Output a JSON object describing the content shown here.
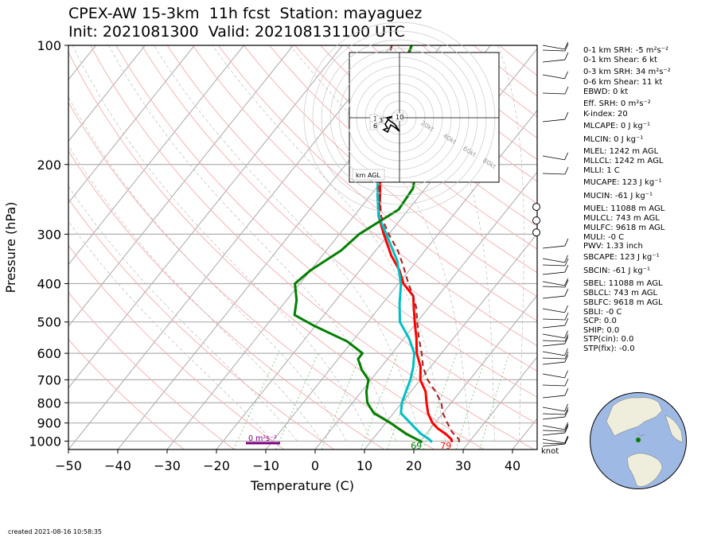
{
  "title_line1": "CPEX-AW 15-3km  11h fcst  Station: mayaguez",
  "title_line2": "Init: 2021081300  Valid: 202108131100 UTC",
  "footer": "created 2021-08-16 10:58:35",
  "wind_unit_label": "knot",
  "indices": [
    "0-1 km SRH: -5 m²s⁻²",
    "0-1 km Shear: 6 kt",
    "0-3 km SRH: 34 m²s⁻²",
    "0-6 km Shear: 11 kt",
    "EBWD: 0 kt",
    "Eff. SRH: 0 m²s⁻²",
    "K-index: 20",
    "MLCAPE: 0 J kg⁻¹",
    "MLCIN: 0 J kg⁻¹",
    "MLEL: 1242 m AGL",
    "MLLCL: 1242 m AGL",
    "MLLI: 1 C",
    "MUCAPE: 123 J kg⁻¹",
    "MUCIN: -61 J kg⁻¹",
    "MUEL: 11088 m AGL",
    "MULCL: 743 m AGL",
    "MULFC: 9618 m AGL",
    "MULI: -0 C",
    "PWV: 1.33 inch",
    "SBCAPE: 123 J kg⁻¹",
    "SBCIN: -61 J kg⁻¹",
    "SBEL: 11088 m AGL",
    "SBLCL: 743 m AGL",
    "SBLFC: 9618 m AGL",
    "SBLI: -0 C",
    "SCP: 0.0",
    "SHIP: 0.0",
    "STP(cin): 0.0",
    "STP(fix): -0.0"
  ],
  "chart_data": {
    "type": "line",
    "subtype": "skew-T log-p",
    "xlabel": "Temperature (C)",
    "ylabel": "Pressure (hPa)",
    "xlim": [
      -50,
      45
    ],
    "ylim": [
      1050,
      100
    ],
    "x_ticks": [
      -50,
      -40,
      -30,
      -20,
      -10,
      0,
      10,
      20,
      30,
      40
    ],
    "y_ticks": [
      100,
      200,
      300,
      400,
      500,
      600,
      700,
      800,
      900,
      1000
    ],
    "y_scale": "log",
    "grid": true,
    "series": [
      {
        "color": "#ff0000",
        "style": "solid",
        "points": [
          [
            1006,
            26.5
          ],
          [
            990,
            26
          ],
          [
            960,
            24
          ],
          [
            930,
            21.5
          ],
          [
            900,
            19.5
          ],
          [
            870,
            18
          ],
          [
            850,
            17
          ],
          [
            800,
            15
          ],
          [
            750,
            13
          ],
          [
            700,
            10
          ],
          [
            650,
            8
          ],
          [
            600,
            5
          ],
          [
            550,
            2.5
          ],
          [
            500,
            -0.5
          ],
          [
            460,
            -3
          ],
          [
            430,
            -5
          ],
          [
            400,
            -9
          ],
          [
            370,
            -12
          ],
          [
            340,
            -16
          ],
          [
            300,
            -21
          ],
          [
            270,
            -25
          ],
          [
            240,
            -28
          ],
          [
            200,
            -33
          ],
          [
            170,
            -37
          ],
          [
            140,
            -40.5
          ],
          [
            120,
            -43.5
          ],
          [
            100,
            -46
          ]
        ]
      },
      {
        "color": "#00bfc4",
        "style": "solid",
        "points": [
          [
            1006,
            22.5
          ],
          [
            990,
            21.5
          ],
          [
            960,
            19
          ],
          [
            930,
            17
          ],
          [
            900,
            15
          ],
          [
            850,
            11.5
          ],
          [
            800,
            10
          ],
          [
            750,
            9
          ],
          [
            700,
            8
          ],
          [
            650,
            6.5
          ],
          [
            600,
            4.5
          ],
          [
            550,
            1
          ],
          [
            500,
            -3.5
          ],
          [
            450,
            -6.5
          ],
          [
            400,
            -9.5
          ],
          [
            350,
            -14
          ],
          [
            300,
            -20.5
          ],
          [
            270,
            -25
          ],
          [
            240,
            -28.5
          ],
          [
            200,
            -33.5
          ],
          [
            170,
            -37
          ],
          [
            150,
            -39.5
          ],
          [
            140,
            -41.5
          ],
          [
            120,
            -43
          ],
          [
            100,
            -46
          ]
        ]
      },
      {
        "color": "#008000",
        "style": "solid",
        "points": [
          [
            1006,
            20.5
          ],
          [
            990,
            19
          ],
          [
            960,
            16
          ],
          [
            930,
            13.5
          ],
          [
            900,
            11
          ],
          [
            850,
            6
          ],
          [
            800,
            3
          ],
          [
            750,
            1
          ],
          [
            700,
            -0.5
          ],
          [
            660,
            -3.5
          ],
          [
            620,
            -6
          ],
          [
            600,
            -6
          ],
          [
            560,
            -11
          ],
          [
            510,
            -20.5
          ],
          [
            480,
            -26
          ],
          [
            440,
            -28
          ],
          [
            400,
            -31
          ],
          [
            370,
            -30
          ],
          [
            330,
            -27
          ],
          [
            300,
            -26
          ],
          [
            260,
            -22
          ],
          [
            230,
            -22.5
          ],
          [
            200,
            -25.5
          ],
          [
            170,
            -32
          ],
          [
            150,
            -38
          ],
          [
            140,
            -40.5
          ],
          [
            120,
            -43
          ],
          [
            100,
            -46
          ]
        ]
      },
      {
        "color": "#a52a2a",
        "style": "dashed",
        "points": [
          [
            1006,
            28
          ],
          [
            990,
            27.5
          ],
          [
            950,
            25
          ],
          [
            900,
            22.5
          ],
          [
            850,
            20
          ],
          [
            800,
            18
          ],
          [
            750,
            15
          ],
          [
            700,
            11.5
          ],
          [
            650,
            8.5
          ],
          [
            600,
            6
          ],
          [
            550,
            3
          ],
          [
            500,
            0
          ],
          [
            460,
            -2.5
          ],
          [
            430,
            -5
          ],
          [
            400,
            -8
          ],
          [
            360,
            -12
          ],
          [
            330,
            -15.5
          ],
          [
            300,
            -20
          ],
          [
            270,
            -24.5
          ],
          [
            240,
            -28
          ],
          [
            200,
            -34
          ],
          [
            170,
            -38.5
          ],
          [
            140,
            -43.5
          ],
          [
            120,
            -46.5
          ],
          [
            100,
            -50
          ]
        ]
      }
    ],
    "surface_labels": [
      {
        "text": "69",
        "color": "#008000",
        "T": 20.5
      },
      {
        "text": "79",
        "color": "#ff0000",
        "T": 26.5
      }
    ],
    "cape_bar": {
      "label": "0 m²s⁻²",
      "color": "#800080"
    },
    "hodograph": {
      "ring_labels": [
        "20kt",
        "40kt",
        "60kt",
        "80kt"
      ],
      "height_labels": [
        "1",
        "3",
        "6",
        "10"
      ],
      "legend": "km AGL"
    },
    "cloud_cover_pressures": [
      256,
      277,
      297
    ]
  }
}
